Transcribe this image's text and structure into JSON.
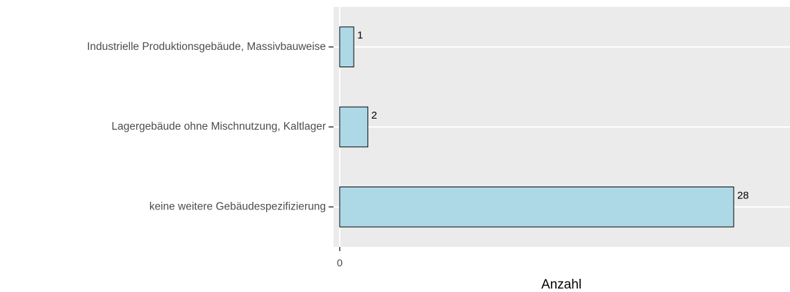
{
  "chart_data": {
    "type": "barh",
    "categories": [
      "Industrielle Produktionsgebäude, Massivbauweise",
      "Lagergebäude ohne Mischnutzung, Kaltlager",
      "keine weitere Gebäudespezifizierung"
    ],
    "values": [
      1,
      2,
      28
    ],
    "color": "#add8e6",
    "xlabel": "Anzahl",
    "xlim": [
      -0.44,
      32
    ],
    "xticks": [
      0
    ],
    "grid": true
  }
}
